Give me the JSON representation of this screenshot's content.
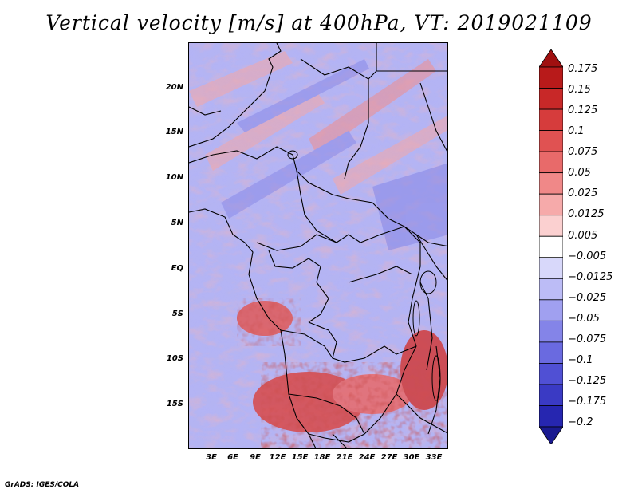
{
  "title": "Vertical velocity [m/s] at 400hPa, VT: 2019021109",
  "credit": "GrADS: IGES/COLA",
  "lat_axis": [
    "20N",
    "15N",
    "10N",
    "5N",
    "EQ",
    "5S",
    "10S",
    "15S"
  ],
  "lon_axis": [
    "3E",
    "6E",
    "9E",
    "12E",
    "15E",
    "18E",
    "21E",
    "24E",
    "27E",
    "30E",
    "33E"
  ],
  "colorbar": {
    "labels": [
      "0.175",
      "0.15",
      "0.125",
      "0.1",
      "0.075",
      "0.05",
      "0.025",
      "0.0125",
      "0.005",
      "−0.005",
      "−0.0125",
      "−0.025",
      "−0.05",
      "−0.075",
      "−0.1",
      "−0.125",
      "−0.175",
      "−0.2"
    ],
    "colors": [
      "#a01010",
      "#b81a1a",
      "#c82828",
      "#d63c3c",
      "#e05252",
      "#e86a6a",
      "#f08888",
      "#f6aaaa",
      "#fbd0d0",
      "#ffffff",
      "#d8d8fa",
      "#bcbcf6",
      "#a0a0f0",
      "#8484e8",
      "#6a6ae0",
      "#5050d4",
      "#3a3ac4",
      "#2626b0",
      "#1a1a90"
    ]
  },
  "palette": {
    "positive_strong": "#a01010",
    "positive_mid": "#e05252",
    "positive_weak": "#f6aaaa",
    "neutral": "#ffffff",
    "negative_weak": "#c4c4f4",
    "negative_mid": "#8080e6",
    "negative_strong": "#3a3ac4"
  }
}
